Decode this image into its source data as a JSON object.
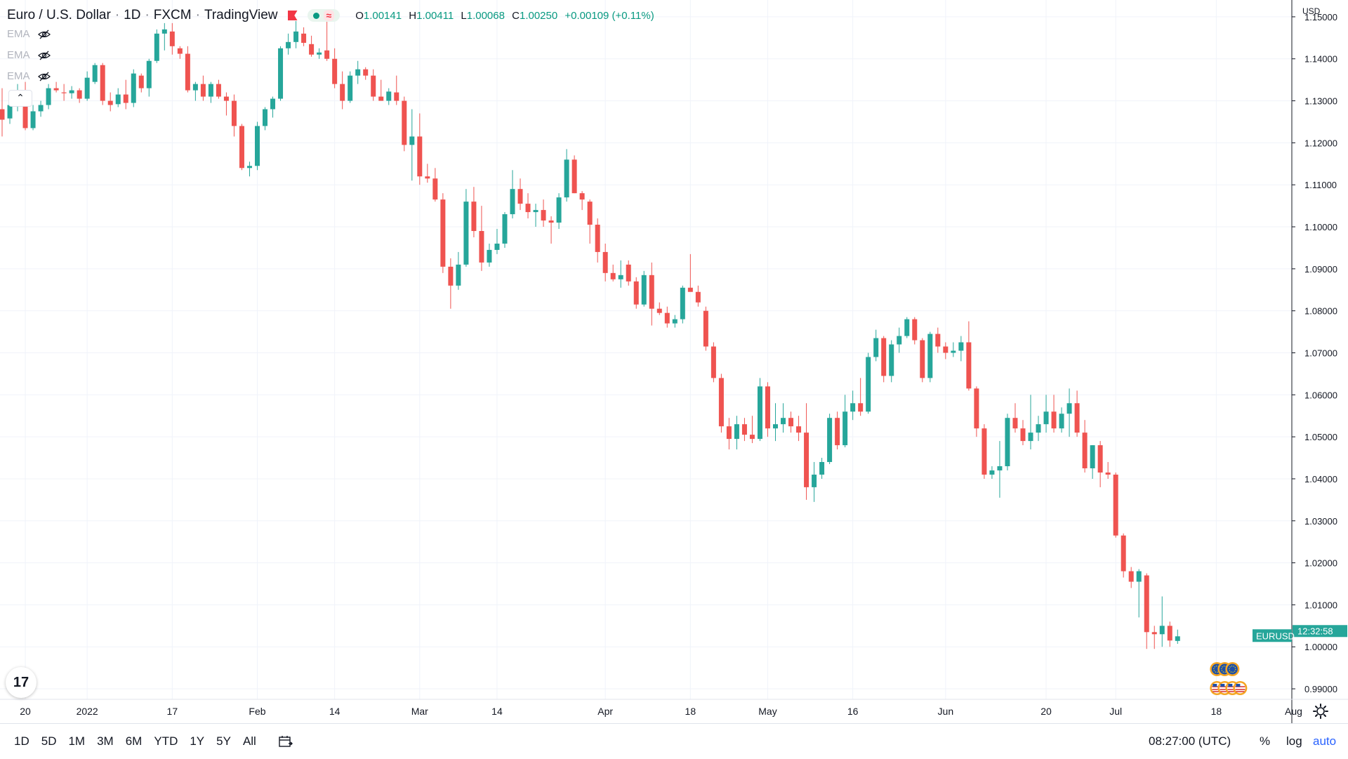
{
  "header": {
    "symbol": "Euro / U.S. Dollar",
    "interval": "1D",
    "exchange": "FXCM",
    "provider": "TradingView",
    "wave": "≈",
    "ohlc": {
      "o_label": "O",
      "o": "1.00141",
      "h_label": "H",
      "h": "1.00411",
      "l_label": "L",
      "l": "1.00068",
      "c_label": "C",
      "c": "1.00250",
      "change": "+0.00109 (+0.11%)"
    }
  },
  "indicators": [
    "EMA",
    "EMA",
    "EMA"
  ],
  "currency": "USD",
  "ticker_badge": "EURUSD",
  "countdown": "12:32:58",
  "logo": "17",
  "bottom_bar": {
    "timeframes": [
      "1D",
      "5D",
      "1M",
      "3M",
      "6M",
      "YTD",
      "1Y",
      "5Y",
      "All"
    ],
    "time": "08:27:00 (UTC)",
    "percent": "%",
    "log": "log",
    "auto": "auto"
  },
  "colors": {
    "up": "#26a69a",
    "down": "#ef5350",
    "grid": "#f0f3fa",
    "accent": "#2962ff"
  },
  "chart_data": {
    "type": "candlestick",
    "symbol": "EURUSD",
    "ylim": [
      0.9875,
      1.154
    ],
    "y_ticks": [
      "1.15000",
      "1.14000",
      "1.13000",
      "1.12000",
      "1.11000",
      "1.10000",
      "1.09000",
      "1.08000",
      "1.07000",
      "1.06000",
      "1.05000",
      "1.04000",
      "1.03000",
      "1.02000",
      "1.01000",
      "1.00000",
      "0.99000"
    ],
    "x_tick_labels": [
      {
        "label": "20",
        "i": 3
      },
      {
        "label": "2022",
        "i": 11
      },
      {
        "label": "17",
        "i": 22
      },
      {
        "label": "Feb",
        "i": 33
      },
      {
        "label": "14",
        "i": 43
      },
      {
        "label": "Mar",
        "i": 54
      },
      {
        "label": "14",
        "i": 64
      },
      {
        "label": "Apr",
        "i": 78
      },
      {
        "label": "18",
        "i": 89
      },
      {
        "label": "May",
        "i": 99
      },
      {
        "label": "16",
        "i": 110
      },
      {
        "label": "Jun",
        "i": 122
      },
      {
        "label": "20",
        "i": 135
      },
      {
        "label": "Jul",
        "i": 144
      },
      {
        "label": "18",
        "i": 157
      },
      {
        "label": "Aug",
        "i": 167
      }
    ],
    "grid": true,
    "ohlc": [
      [
        1.128,
        1.133,
        1.1215,
        1.1255
      ],
      [
        1.1258,
        1.131,
        1.1245,
        1.129
      ],
      [
        1.129,
        1.134,
        1.1275,
        1.132
      ],
      [
        1.1318,
        1.1345,
        1.123,
        1.1235
      ],
      [
        1.1235,
        1.129,
        1.123,
        1.1275
      ],
      [
        1.1275,
        1.13,
        1.1262,
        1.129
      ],
      [
        1.129,
        1.134,
        1.128,
        1.133
      ],
      [
        1.133,
        1.1345,
        1.132,
        1.1325
      ],
      [
        1.132,
        1.134,
        1.13,
        1.1318
      ],
      [
        1.1318,
        1.1335,
        1.1305,
        1.1325
      ],
      [
        1.1325,
        1.133,
        1.1295,
        1.1305
      ],
      [
        1.1305,
        1.137,
        1.13,
        1.1355
      ],
      [
        1.1345,
        1.139,
        1.134,
        1.1385
      ],
      [
        1.1385,
        1.139,
        1.129,
        1.13
      ],
      [
        1.13,
        1.132,
        1.1275,
        1.129
      ],
      [
        1.1292,
        1.133,
        1.1285,
        1.1315
      ],
      [
        1.1315,
        1.135,
        1.128,
        1.1295
      ],
      [
        1.1295,
        1.1375,
        1.1285,
        1.1365
      ],
      [
        1.136,
        1.1365,
        1.132,
        1.133
      ],
      [
        1.133,
        1.14,
        1.131,
        1.1395
      ],
      [
        1.1395,
        1.147,
        1.139,
        1.146
      ],
      [
        1.146,
        1.1485,
        1.142,
        1.147
      ],
      [
        1.1465,
        1.1485,
        1.141,
        1.143
      ],
      [
        1.1425,
        1.143,
        1.14,
        1.1412
      ],
      [
        1.1412,
        1.143,
        1.132,
        1.1325
      ],
      [
        1.1325,
        1.1345,
        1.13,
        1.134
      ],
      [
        1.134,
        1.136,
        1.13,
        1.131
      ],
      [
        1.131,
        1.1345,
        1.1295,
        1.134
      ],
      [
        1.134,
        1.135,
        1.1305,
        1.131
      ],
      [
        1.131,
        1.132,
        1.1265,
        1.13
      ],
      [
        1.13,
        1.1315,
        1.1215,
        1.124
      ],
      [
        1.124,
        1.1245,
        1.1135,
        1.114
      ],
      [
        1.114,
        1.1155,
        1.112,
        1.1145
      ],
      [
        1.1145,
        1.125,
        1.1135,
        1.124
      ],
      [
        1.124,
        1.1285,
        1.123,
        1.128
      ],
      [
        1.128,
        1.131,
        1.126,
        1.1305
      ],
      [
        1.1305,
        1.143,
        1.13,
        1.1425
      ],
      [
        1.1425,
        1.146,
        1.141,
        1.144
      ],
      [
        1.144,
        1.149,
        1.1425,
        1.1465
      ],
      [
        1.146,
        1.1475,
        1.143,
        1.1438
      ],
      [
        1.1435,
        1.1455,
        1.1405,
        1.141
      ],
      [
        1.141,
        1.1425,
        1.14,
        1.1415
      ],
      [
        1.142,
        1.1495,
        1.1395,
        1.14
      ],
      [
        1.14,
        1.1425,
        1.133,
        1.134
      ],
      [
        1.134,
        1.137,
        1.128,
        1.13
      ],
      [
        1.13,
        1.137,
        1.1295,
        1.136
      ],
      [
        1.136,
        1.1395,
        1.134,
        1.1375
      ],
      [
        1.1375,
        1.138,
        1.135,
        1.136
      ],
      [
        1.136,
        1.1375,
        1.13,
        1.131
      ],
      [
        1.131,
        1.135,
        1.13,
        1.13
      ],
      [
        1.13,
        1.133,
        1.129,
        1.1322
      ],
      [
        1.132,
        1.136,
        1.129,
        1.13
      ],
      [
        1.13,
        1.131,
        1.118,
        1.1195
      ],
      [
        1.1195,
        1.128,
        1.111,
        1.1215
      ],
      [
        1.1215,
        1.127,
        1.11,
        1.112
      ],
      [
        1.112,
        1.115,
        1.1105,
        1.1115
      ],
      [
        1.1115,
        1.114,
        1.106,
        1.1065
      ],
      [
        1.1065,
        1.108,
        1.089,
        1.0905
      ],
      [
        1.0905,
        1.0925,
        1.0805,
        1.086
      ],
      [
        1.086,
        1.094,
        1.085,
        1.091
      ],
      [
        1.091,
        1.109,
        1.0905,
        1.106
      ],
      [
        1.106,
        1.1095,
        1.0975,
        1.099
      ],
      [
        1.099,
        1.105,
        1.0895,
        1.0915
      ],
      [
        1.0915,
        1.096,
        1.0905,
        1.0945
      ],
      [
        1.0945,
        1.0995,
        1.0935,
        1.096
      ],
      [
        1.096,
        1.1035,
        1.095,
        1.103
      ],
      [
        1.103,
        1.1135,
        1.102,
        1.109
      ],
      [
        1.109,
        1.1115,
        1.104,
        1.1055
      ],
      [
        1.1055,
        1.108,
        1.102,
        1.1035
      ],
      [
        1.1035,
        1.1055,
        1.1,
        1.104
      ],
      [
        1.104,
        1.1065,
        1.1,
        1.1015
      ],
      [
        1.1015,
        1.1025,
        1.096,
        1.101
      ],
      [
        1.101,
        1.108,
        1.0995,
        1.107
      ],
      [
        1.107,
        1.1185,
        1.106,
        1.116
      ],
      [
        1.116,
        1.117,
        1.108,
        1.108
      ],
      [
        1.108,
        1.1085,
        1.104,
        1.1065
      ],
      [
        1.106,
        1.1065,
        1.096,
        1.1005
      ],
      [
        1.1005,
        1.102,
        1.0915,
        1.094
      ],
      [
        1.094,
        1.096,
        1.087,
        1.089
      ],
      [
        1.089,
        1.091,
        1.087,
        1.0875
      ],
      [
        1.0875,
        1.092,
        1.0855,
        1.0885
      ],
      [
        1.091,
        1.092,
        1.086,
        1.087
      ],
      [
        1.087,
        1.088,
        1.0805,
        1.0815
      ],
      [
        1.0815,
        1.0895,
        1.081,
        1.0885
      ],
      [
        1.0885,
        1.0915,
        1.0765,
        1.0805
      ],
      [
        1.0805,
        1.082,
        1.079,
        1.0795
      ],
      [
        1.0795,
        1.081,
        1.076,
        1.077
      ],
      [
        1.077,
        1.079,
        1.076,
        1.078
      ],
      [
        1.078,
        1.086,
        1.077,
        1.0855
      ],
      [
        1.0855,
        1.0935,
        1.085,
        1.0845
      ],
      [
        1.0845,
        1.086,
        1.081,
        1.082
      ],
      [
        1.08,
        1.081,
        1.0705,
        1.0715
      ],
      [
        1.0715,
        1.0725,
        1.063,
        1.064
      ],
      [
        1.064,
        1.065,
        1.051,
        1.0525
      ],
      [
        1.0525,
        1.0545,
        1.047,
        1.0495
      ],
      [
        1.0495,
        1.055,
        1.047,
        1.053
      ],
      [
        1.053,
        1.0545,
        1.049,
        1.0505
      ],
      [
        1.0505,
        1.055,
        1.0485,
        1.0495
      ],
      [
        1.0495,
        1.064,
        1.049,
        1.062
      ],
      [
        1.062,
        1.063,
        1.05,
        1.052
      ],
      [
        1.052,
        1.058,
        1.049,
        1.053
      ],
      [
        1.053,
        1.058,
        1.051,
        1.0545
      ],
      [
        1.0545,
        1.056,
        1.051,
        1.0525
      ],
      [
        1.0525,
        1.055,
        1.049,
        1.051
      ],
      [
        1.051,
        1.058,
        1.035,
        1.038
      ],
      [
        1.038,
        1.044,
        1.0345,
        1.041
      ],
      [
        1.041,
        1.045,
        1.04,
        1.044
      ],
      [
        1.044,
        1.0555,
        1.0435,
        1.0545
      ],
      [
        1.0545,
        1.056,
        1.047,
        1.048
      ],
      [
        1.048,
        1.06,
        1.0475,
        1.056
      ],
      [
        1.056,
        1.061,
        1.054,
        1.058
      ],
      [
        1.058,
        1.064,
        1.055,
        1.056
      ],
      [
        1.056,
        1.07,
        1.0555,
        1.069
      ],
      [
        1.069,
        1.0755,
        1.068,
        1.0735
      ],
      [
        1.0735,
        1.074,
        1.063,
        1.0645
      ],
      [
        1.0645,
        1.073,
        1.063,
        1.072
      ],
      [
        1.072,
        1.076,
        1.07,
        1.074
      ],
      [
        1.074,
        1.0785,
        1.0735,
        1.078
      ],
      [
        1.078,
        1.0785,
        1.072,
        1.073
      ],
      [
        1.073,
        1.0735,
        1.063,
        1.064
      ],
      [
        1.064,
        1.075,
        1.063,
        1.0745
      ],
      [
        1.0745,
        1.076,
        1.07,
        1.0715
      ],
      [
        1.0715,
        1.0725,
        1.0685,
        1.07
      ],
      [
        1.07,
        1.0725,
        1.069,
        1.0705
      ],
      [
        1.0705,
        1.074,
        1.068,
        1.0725
      ],
      [
        1.0725,
        1.0775,
        1.061,
        1.0615
      ],
      [
        1.0615,
        1.062,
        1.05,
        1.052
      ],
      [
        1.052,
        1.053,
        1.04,
        1.041
      ],
      [
        1.041,
        1.043,
        1.04,
        1.042
      ],
      [
        1.042,
        1.049,
        1.0355,
        1.043
      ],
      [
        1.043,
        1.0555,
        1.042,
        1.0545
      ],
      [
        1.0545,
        1.058,
        1.051,
        1.052
      ],
      [
        1.052,
        1.054,
        1.048,
        1.049
      ],
      [
        1.049,
        1.06,
        1.047,
        1.051
      ],
      [
        1.051,
        1.055,
        1.049,
        1.053
      ],
      [
        1.053,
        1.06,
        1.051,
        1.056
      ],
      [
        1.056,
        1.06,
        1.051,
        1.052
      ],
      [
        1.052,
        1.057,
        1.051,
        1.0555
      ],
      [
        1.0555,
        1.0615,
        1.05,
        1.058
      ],
      [
        1.058,
        1.061,
        1.05,
        1.051
      ],
      [
        1.051,
        1.054,
        1.0415,
        1.0425
      ],
      [
        1.0425,
        1.048,
        1.04,
        1.048
      ],
      [
        1.048,
        1.049,
        1.038,
        1.0415
      ],
      [
        1.0415,
        1.044,
        1.04,
        1.041
      ],
      [
        1.041,
        1.0415,
        1.026,
        1.0265
      ],
      [
        1.0265,
        1.027,
        1.0165,
        1.018
      ],
      [
        1.018,
        1.019,
        1.014,
        1.0155
      ],
      [
        1.0155,
        1.0185,
        1.007,
        1.018
      ],
      [
        1.017,
        1.0175,
        0.9995,
        1.0035
      ],
      [
        1.0035,
        1.005,
        0.9995,
        1.003
      ],
      [
        1.003,
        1.012,
        1.0,
        1.005
      ],
      [
        1.005,
        1.006,
        1.0,
        1.0015
      ],
      [
        1.0014,
        1.0041,
        1.0007,
        1.0025
      ]
    ],
    "event_markers": [
      {
        "i": 156,
        "flag": "EU",
        "row": 1
      },
      {
        "i": 157,
        "flag": "EU",
        "row": 1
      },
      {
        "i": 158,
        "flag": "EU",
        "row": 1
      },
      {
        "i": 156,
        "flag": "US",
        "row": 2
      },
      {
        "i": 157,
        "flag": "US",
        "row": 2
      },
      {
        "i": 158,
        "flag": "US",
        "row": 2
      },
      {
        "i": 159,
        "flag": "US",
        "row": 2
      }
    ]
  }
}
